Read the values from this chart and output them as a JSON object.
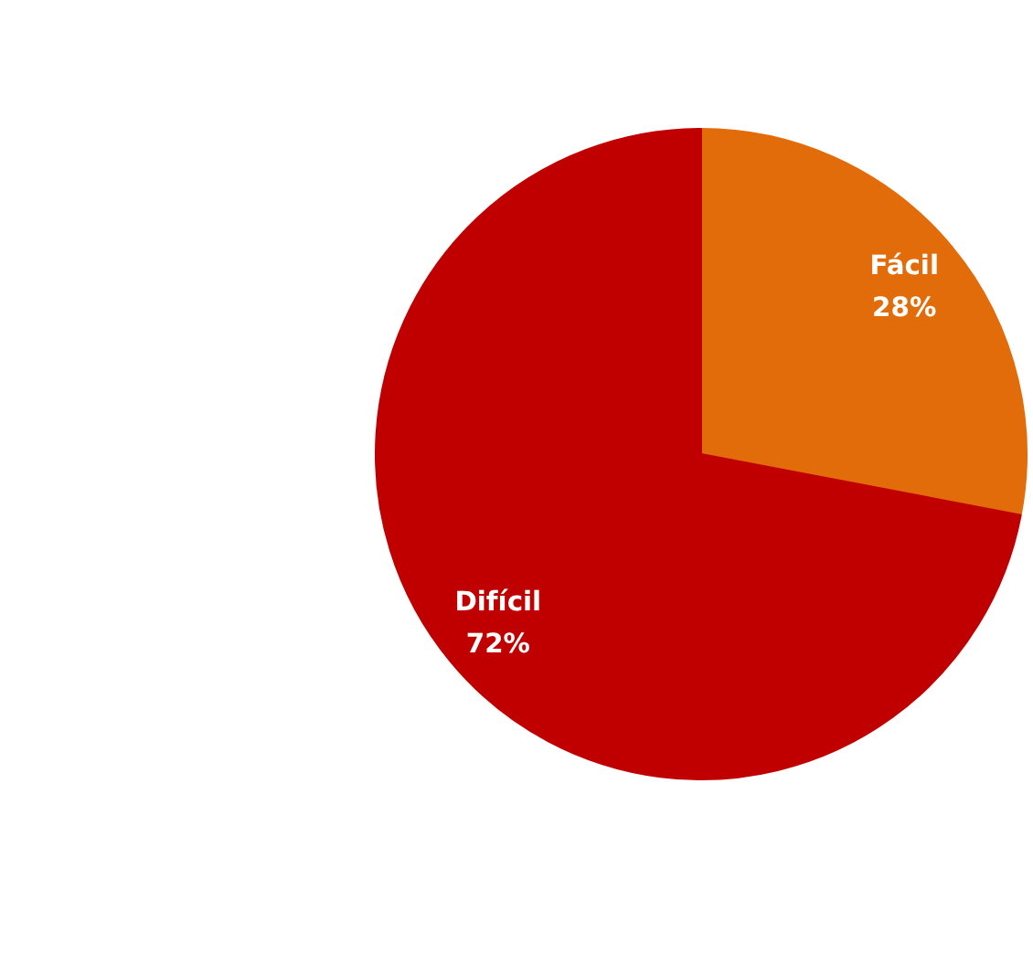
{
  "chart_data": {
    "type": "pie",
    "categories": [
      "Fácil",
      "Difícil"
    ],
    "values": [
      28,
      72
    ],
    "colors": [
      "#e36c0a",
      "#c00000"
    ],
    "value_labels": [
      "28%",
      "72%"
    ],
    "legend": false
  }
}
